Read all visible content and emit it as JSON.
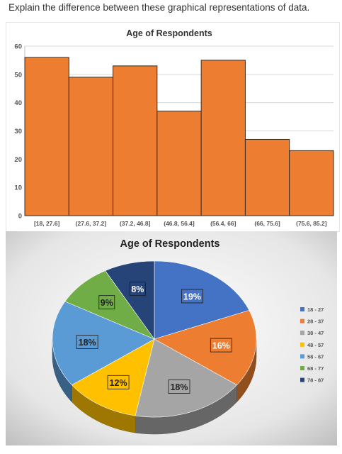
{
  "question": "Explain the difference between these graphical representations of data.",
  "chart_data": [
    {
      "type": "bar",
      "title": "Age of Respondents",
      "categories": [
        "[18, 27.6]",
        "(27.6, 37.2]",
        "(37.2, 46.8]",
        "(46.8, 56.4]",
        "(56.4, 66]",
        "(66, 75.6]",
        "(75.6, 85.2]"
      ],
      "values": [
        56,
        49,
        53,
        37,
        55,
        27,
        23
      ],
      "ylim": [
        0,
        60
      ],
      "yticks": [
        0,
        10,
        20,
        30,
        40,
        50,
        60
      ],
      "grid": true,
      "bar_color": "#ED7D31",
      "bar_edge": "#3a2a1c"
    },
    {
      "type": "pie",
      "title": "Age of Respondents",
      "legend_position": "right",
      "slices": [
        {
          "label": "18 - 27",
          "value": 19,
          "text": "19%",
          "color": "#4472C4"
        },
        {
          "label": "28 - 37",
          "value": 16,
          "text": "16%",
          "color": "#ED7D31"
        },
        {
          "label": "38 - 47",
          "value": 18,
          "text": "18%",
          "color": "#A5A5A5"
        },
        {
          "label": "48 - 57",
          "value": 12,
          "text": "12%",
          "color": "#FFC000"
        },
        {
          "label": "58 - 67",
          "value": 18,
          "text": "18%",
          "color": "#5B9BD5"
        },
        {
          "label": "68 - 77",
          "value": 9,
          "text": "9%",
          "color": "#70AD47"
        },
        {
          "label": "78 - 87",
          "value": 8,
          "text": "8%",
          "color": "#264478"
        }
      ]
    }
  ]
}
